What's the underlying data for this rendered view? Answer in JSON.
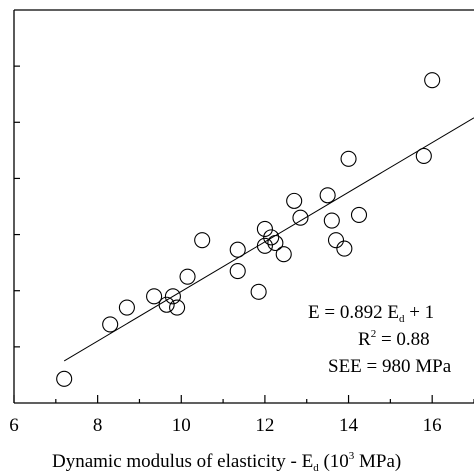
{
  "chart_data": {
    "type": "scatter",
    "title": "",
    "xlabel_main": "Dynamic modulus of elasticity - E",
    "xlabel_sub": "d",
    "xlabel_rest_a": " (10",
    "xlabel_sup": "3",
    "xlabel_rest_b": " MPa)",
    "ylabel": "",
    "xlim": [
      6,
      17
    ],
    "ylim": [
      0,
      70
    ],
    "x_ticks": [
      6,
      8,
      10,
      12,
      14,
      16
    ],
    "y_tick_values": [
      10,
      20,
      30,
      40,
      50,
      60
    ],
    "points": [
      {
        "x": 7.2,
        "y": 4.3
      },
      {
        "x": 8.3,
        "y": 14.0
      },
      {
        "x": 8.7,
        "y": 17.0
      },
      {
        "x": 9.35,
        "y": 19.0
      },
      {
        "x": 9.65,
        "y": 17.5
      },
      {
        "x": 9.8,
        "y": 19.0
      },
      {
        "x": 9.9,
        "y": 17.0
      },
      {
        "x": 10.15,
        "y": 22.5
      },
      {
        "x": 10.5,
        "y": 29.0
      },
      {
        "x": 11.35,
        "y": 23.5
      },
      {
        "x": 11.35,
        "y": 27.3
      },
      {
        "x": 11.85,
        "y": 19.8
      },
      {
        "x": 12.0,
        "y": 28.0
      },
      {
        "x": 12.0,
        "y": 31.0
      },
      {
        "x": 12.15,
        "y": 29.5
      },
      {
        "x": 12.25,
        "y": 28.5
      },
      {
        "x": 12.45,
        "y": 26.5
      },
      {
        "x": 12.7,
        "y": 36.0
      },
      {
        "x": 12.85,
        "y": 33.0
      },
      {
        "x": 13.5,
        "y": 37.0
      },
      {
        "x": 13.6,
        "y": 32.5
      },
      {
        "x": 13.7,
        "y": 29.0
      },
      {
        "x": 13.9,
        "y": 27.5
      },
      {
        "x": 14.0,
        "y": 43.5
      },
      {
        "x": 14.25,
        "y": 33.5
      },
      {
        "x": 15.8,
        "y": 44.0
      },
      {
        "x": 16.0,
        "y": 57.5
      }
    ],
    "fit_line": {
      "x0": 7.2,
      "y0": 7.5,
      "x1": 17.0,
      "y1": 50.8
    },
    "annotations": {
      "equation_pre": "E = 0.892 E",
      "equation_sub": "d",
      "equation_post": " + 1",
      "r2_pre": "R",
      "r2_sup": "2",
      "r2_post": " = 0.88",
      "see": "SEE = 980 MPa"
    }
  }
}
